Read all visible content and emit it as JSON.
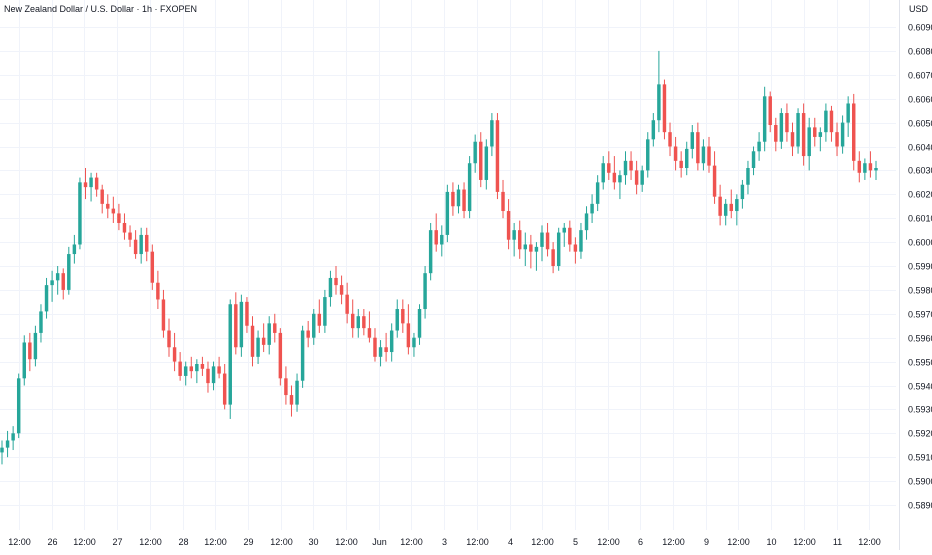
{
  "header": {
    "title": "New Zealand Dollar / U.S. Dollar · 1h · FXOPEN",
    "currency": "USD"
  },
  "colors": {
    "up": "#26a69a",
    "down": "#ef5350",
    "grid": "#f0f3fa",
    "axis_text": "#131722",
    "axis_line": "#e0e3eb"
  },
  "chart_data": {
    "type": "candlestick",
    "title": "New Zealand Dollar / U.S. Dollar · 1h · FXOPEN",
    "ylabel": "USD",
    "ylim": [
      0.5888,
      0.6099
    ],
    "yticks": [
      "0.60900",
      "0.60800",
      "0.60700",
      "0.60600",
      "0.60500",
      "0.60400",
      "0.60300",
      "0.60200",
      "0.60100",
      "0.60000",
      "0.59900",
      "0.59800",
      "0.59700",
      "0.59600",
      "0.59500",
      "0.59400",
      "0.59300",
      "0.59200",
      "0.59100",
      "0.59000",
      "0.58900"
    ],
    "xticks": [
      "12:00",
      "26",
      "12:00",
      "27",
      "12:00",
      "28",
      "12:00",
      "29",
      "12:00",
      "30",
      "12:00",
      "Jun",
      "12:00",
      "3",
      "12:00",
      "4",
      "12:00",
      "5",
      "12:00",
      "6",
      "12:00",
      "9",
      "12:00",
      "10",
      "12:00",
      "11",
      "12:00"
    ],
    "grid": true,
    "last": 0.6031,
    "candles": [
      [
        0.5912,
        0.5917,
        0.5907,
        0.5914
      ],
      [
        0.5914,
        0.5921,
        0.591,
        0.5917
      ],
      [
        0.5917,
        0.5923,
        0.5913,
        0.592
      ],
      [
        0.592,
        0.5945,
        0.5918,
        0.5943
      ],
      [
        0.5943,
        0.5961,
        0.594,
        0.5958
      ],
      [
        0.5958,
        0.5962,
        0.5946,
        0.5951
      ],
      [
        0.5951,
        0.5965,
        0.5948,
        0.5962
      ],
      [
        0.5962,
        0.5974,
        0.5958,
        0.5971
      ],
      [
        0.5971,
        0.5985,
        0.5968,
        0.5982
      ],
      [
        0.5982,
        0.5988,
        0.5975,
        0.5984
      ],
      [
        0.5984,
        0.599,
        0.5978,
        0.5987
      ],
      [
        0.5987,
        0.5989,
        0.5976,
        0.598
      ],
      [
        0.598,
        0.5998,
        0.5978,
        0.5995
      ],
      [
        0.5995,
        0.6003,
        0.5991,
        0.5999
      ],
      [
        0.5999,
        0.6027,
        0.5997,
        0.6025
      ],
      [
        0.6025,
        0.6031,
        0.6018,
        0.6023
      ],
      [
        0.6023,
        0.6029,
        0.6017,
        0.6027
      ],
      [
        0.6027,
        0.6029,
        0.6019,
        0.6022
      ],
      [
        0.6022,
        0.6024,
        0.6012,
        0.6016
      ],
      [
        0.6016,
        0.602,
        0.601,
        0.6014
      ],
      [
        0.6014,
        0.6019,
        0.6008,
        0.6012
      ],
      [
        0.6012,
        0.6016,
        0.6005,
        0.6008
      ],
      [
        0.6008,
        0.6012,
        0.6001,
        0.6004
      ],
      [
        0.6004,
        0.6007,
        0.5998,
        0.6001
      ],
      [
        0.6001,
        0.6005,
        0.5993,
        0.5995
      ],
      [
        0.5995,
        0.6006,
        0.5991,
        0.6003
      ],
      [
        0.6003,
        0.6006,
        0.5992,
        0.5996
      ],
      [
        0.5996,
        0.5999,
        0.598,
        0.5983
      ],
      [
        0.5983,
        0.5988,
        0.5972,
        0.5976
      ],
      [
        0.5976,
        0.598,
        0.596,
        0.5963
      ],
      [
        0.5963,
        0.5968,
        0.5952,
        0.5956
      ],
      [
        0.5956,
        0.5962,
        0.5946,
        0.595
      ],
      [
        0.595,
        0.5954,
        0.5942,
        0.5944
      ],
      [
        0.5944,
        0.595,
        0.594,
        0.5948
      ],
      [
        0.5948,
        0.5952,
        0.5943,
        0.5946
      ],
      [
        0.5946,
        0.5951,
        0.5941,
        0.5949
      ],
      [
        0.5949,
        0.5952,
        0.5944,
        0.5947
      ],
      [
        0.5947,
        0.595,
        0.5937,
        0.5941
      ],
      [
        0.5941,
        0.595,
        0.5938,
        0.5948
      ],
      [
        0.5948,
        0.5952,
        0.5943,
        0.5945
      ],
      [
        0.5945,
        0.5949,
        0.593,
        0.5932
      ],
      [
        0.5932,
        0.5976,
        0.5926,
        0.5974
      ],
      [
        0.5974,
        0.5979,
        0.5953,
        0.5956
      ],
      [
        0.5956,
        0.5978,
        0.5952,
        0.5975
      ],
      [
        0.5975,
        0.5977,
        0.5962,
        0.5965
      ],
      [
        0.5965,
        0.5969,
        0.5948,
        0.5952
      ],
      [
        0.5952,
        0.5963,
        0.5949,
        0.596
      ],
      [
        0.596,
        0.5966,
        0.5954,
        0.5957
      ],
      [
        0.5957,
        0.5969,
        0.5953,
        0.5966
      ],
      [
        0.5966,
        0.597,
        0.5958,
        0.5962
      ],
      [
        0.5962,
        0.5964,
        0.594,
        0.5943
      ],
      [
        0.5943,
        0.5948,
        0.5932,
        0.5936
      ],
      [
        0.5936,
        0.594,
        0.5927,
        0.5932
      ],
      [
        0.5932,
        0.5945,
        0.5929,
        0.5942
      ],
      [
        0.5942,
        0.5965,
        0.5939,
        0.5963
      ],
      [
        0.5963,
        0.5967,
        0.5956,
        0.596
      ],
      [
        0.596,
        0.5972,
        0.5957,
        0.597
      ],
      [
        0.597,
        0.5976,
        0.5962,
        0.5965
      ],
      [
        0.5965,
        0.598,
        0.5962,
        0.5977
      ],
      [
        0.5977,
        0.5988,
        0.5973,
        0.5985
      ],
      [
        0.5985,
        0.599,
        0.5978,
        0.5982
      ],
      [
        0.5982,
        0.5986,
        0.5974,
        0.5978
      ],
      [
        0.5978,
        0.5983,
        0.5966,
        0.597
      ],
      [
        0.597,
        0.5976,
        0.596,
        0.5964
      ],
      [
        0.5964,
        0.5972,
        0.596,
        0.5969
      ],
      [
        0.5969,
        0.5972,
        0.5961,
        0.5964
      ],
      [
        0.5964,
        0.5971,
        0.5958,
        0.596
      ],
      [
        0.596,
        0.5964,
        0.595,
        0.5952
      ],
      [
        0.5952,
        0.5959,
        0.5948,
        0.5956
      ],
      [
        0.5956,
        0.5962,
        0.595,
        0.5954
      ],
      [
        0.5954,
        0.5966,
        0.595,
        0.5963
      ],
      [
        0.5963,
        0.5976,
        0.596,
        0.5972
      ],
      [
        0.5972,
        0.5976,
        0.5962,
        0.5966
      ],
      [
        0.5966,
        0.5974,
        0.5953,
        0.5956
      ],
      [
        0.5956,
        0.5962,
        0.5952,
        0.596
      ],
      [
        0.596,
        0.5974,
        0.5957,
        0.5972
      ],
      [
        0.5972,
        0.599,
        0.5968,
        0.5987
      ],
      [
        0.5987,
        0.6008,
        0.5984,
        0.6005
      ],
      [
        0.6005,
        0.6012,
        0.5996,
        0.5999
      ],
      [
        0.5999,
        0.6007,
        0.5994,
        0.6003
      ],
      [
        0.6003,
        0.6024,
        0.6,
        0.6021
      ],
      [
        0.6021,
        0.6025,
        0.6011,
        0.6015
      ],
      [
        0.6015,
        0.6024,
        0.6012,
        0.6022
      ],
      [
        0.6022,
        0.6025,
        0.601,
        0.6013
      ],
      [
        0.6013,
        0.6036,
        0.601,
        0.6033
      ],
      [
        0.6033,
        0.6045,
        0.6029,
        0.6042
      ],
      [
        0.6042,
        0.6046,
        0.6023,
        0.6026
      ],
      [
        0.6026,
        0.6043,
        0.6022,
        0.604
      ],
      [
        0.604,
        0.6054,
        0.6036,
        0.6051
      ],
      [
        0.6051,
        0.6054,
        0.6018,
        0.6021
      ],
      [
        0.6021,
        0.6026,
        0.601,
        0.6013
      ],
      [
        0.6013,
        0.6018,
        0.5997,
        0.6001
      ],
      [
        0.6001,
        0.6008,
        0.5994,
        0.6005
      ],
      [
        0.6005,
        0.6009,
        0.5993,
        0.5997
      ],
      [
        0.5997,
        0.6004,
        0.599,
        0.5999
      ],
      [
        0.5999,
        0.6003,
        0.5989,
        0.5996
      ],
      [
        0.5996,
        0.6,
        0.5988,
        0.5998
      ],
      [
        0.5998,
        0.6007,
        0.5992,
        0.6004
      ],
      [
        0.6004,
        0.6008,
        0.5994,
        0.5997
      ],
      [
        0.5997,
        0.6,
        0.5987,
        0.599
      ],
      [
        0.599,
        0.6006,
        0.5988,
        0.6004
      ],
      [
        0.6004,
        0.6008,
        0.5998,
        0.6006
      ],
      [
        0.6006,
        0.6009,
        0.5996,
        0.5999
      ],
      [
        0.5999,
        0.6002,
        0.5991,
        0.5996
      ],
      [
        0.5996,
        0.6008,
        0.5993,
        0.6005
      ],
      [
        0.6005,
        0.6015,
        0.6001,
        0.6012
      ],
      [
        0.6012,
        0.602,
        0.6008,
        0.6016
      ],
      [
        0.6016,
        0.6028,
        0.6013,
        0.6025
      ],
      [
        0.6025,
        0.6036,
        0.6022,
        0.6033
      ],
      [
        0.6033,
        0.6038,
        0.6026,
        0.6029
      ],
      [
        0.6029,
        0.6036,
        0.6022,
        0.6025
      ],
      [
        0.6025,
        0.603,
        0.6018,
        0.6028
      ],
      [
        0.6028,
        0.6038,
        0.6024,
        0.6034
      ],
      [
        0.6034,
        0.6038,
        0.6026,
        0.603
      ],
      [
        0.603,
        0.6034,
        0.602,
        0.6024
      ],
      [
        0.6024,
        0.6032,
        0.6021,
        0.603
      ],
      [
        0.603,
        0.6046,
        0.6027,
        0.6043
      ],
      [
        0.6043,
        0.6054,
        0.604,
        0.6051
      ],
      [
        0.6051,
        0.608,
        0.6046,
        0.6066
      ],
      [
        0.6066,
        0.6068,
        0.6043,
        0.6046
      ],
      [
        0.6046,
        0.605,
        0.6036,
        0.604
      ],
      [
        0.604,
        0.6044,
        0.603,
        0.6034
      ],
      [
        0.6034,
        0.6038,
        0.6027,
        0.6031
      ],
      [
        0.6031,
        0.6042,
        0.6028,
        0.6039
      ],
      [
        0.6039,
        0.6049,
        0.6035,
        0.6046
      ],
      [
        0.6046,
        0.605,
        0.603,
        0.6033
      ],
      [
        0.6033,
        0.6043,
        0.603,
        0.604
      ],
      [
        0.604,
        0.6044,
        0.6029,
        0.6032
      ],
      [
        0.6032,
        0.6038,
        0.6016,
        0.6019
      ],
      [
        0.6019,
        0.6024,
        0.6007,
        0.6011
      ],
      [
        0.6011,
        0.6018,
        0.6007,
        0.6016
      ],
      [
        0.6016,
        0.6022,
        0.601,
        0.6013
      ],
      [
        0.6013,
        0.602,
        0.6007,
        0.6018
      ],
      [
        0.6018,
        0.6026,
        0.6014,
        0.6024
      ],
      [
        0.6024,
        0.6034,
        0.602,
        0.6031
      ],
      [
        0.6031,
        0.604,
        0.6028,
        0.6038
      ],
      [
        0.6038,
        0.6046,
        0.6034,
        0.6042
      ],
      [
        0.6042,
        0.6065,
        0.6038,
        0.6061
      ],
      [
        0.6061,
        0.6063,
        0.6046,
        0.6049
      ],
      [
        0.6049,
        0.6052,
        0.6038,
        0.6042
      ],
      [
        0.6042,
        0.6056,
        0.6039,
        0.6054
      ],
      [
        0.6054,
        0.6058,
        0.6042,
        0.6046
      ],
      [
        0.6046,
        0.605,
        0.6036,
        0.604
      ],
      [
        0.604,
        0.6056,
        0.6037,
        0.6054
      ],
      [
        0.6054,
        0.6058,
        0.6032,
        0.6036
      ],
      [
        0.6036,
        0.6052,
        0.603,
        0.6048
      ],
      [
        0.6048,
        0.6052,
        0.604,
        0.6044
      ],
      [
        0.6044,
        0.6048,
        0.6038,
        0.6046
      ],
      [
        0.6046,
        0.6058,
        0.6042,
        0.6055
      ],
      [
        0.6055,
        0.6057,
        0.6042,
        0.6046
      ],
      [
        0.6046,
        0.605,
        0.6036,
        0.604
      ],
      [
        0.604,
        0.6053,
        0.6037,
        0.605
      ],
      [
        0.605,
        0.6061,
        0.6044,
        0.6058
      ],
      [
        0.6058,
        0.6062,
        0.603,
        0.6034
      ],
      [
        0.6034,
        0.6038,
        0.6025,
        0.6029
      ],
      [
        0.6029,
        0.6035,
        0.6026,
        0.6033
      ],
      [
        0.6033,
        0.6038,
        0.6027,
        0.603
      ],
      [
        0.603,
        0.6034,
        0.6026,
        0.6031
      ]
    ]
  }
}
